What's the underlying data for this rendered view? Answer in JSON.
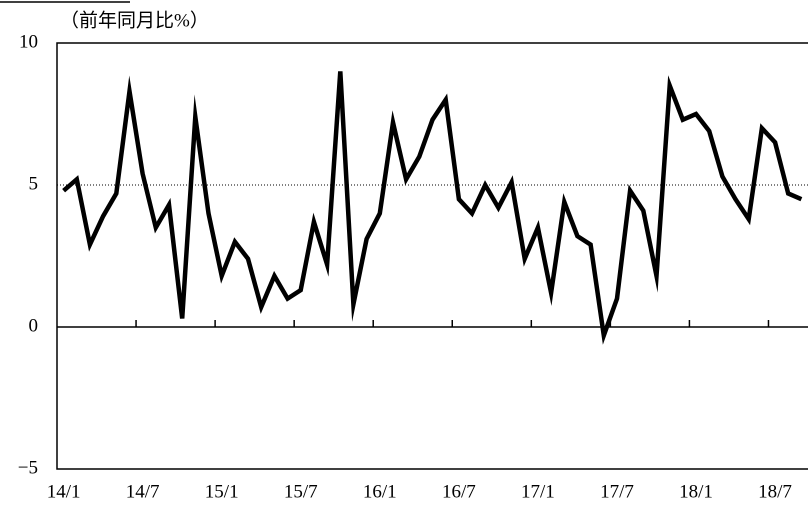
{
  "chart_data": {
    "type": "line",
    "title": "（前年同月比%）",
    "categories": [
      "14/1",
      null,
      null,
      null,
      null,
      null,
      "14/7",
      null,
      null,
      null,
      null,
      null,
      "15/1",
      null,
      null,
      null,
      null,
      null,
      "15/7",
      null,
      null,
      null,
      null,
      null,
      "16/1",
      null,
      null,
      null,
      null,
      null,
      "16/7",
      null,
      null,
      null,
      null,
      null,
      "17/1",
      null,
      null,
      null,
      null,
      null,
      "17/7",
      null,
      null,
      null,
      null,
      null,
      "18/1",
      null,
      null,
      null,
      null,
      null,
      "18/7",
      null,
      null
    ],
    "values": [
      4.8,
      5.2,
      2.9,
      3.9,
      4.7,
      8.3,
      5.4,
      3.5,
      4.3,
      0.3,
      7.4,
      4.0,
      1.8,
      3.0,
      2.4,
      0.7,
      1.8,
      1.0,
      1.3,
      3.7,
      2.2,
      9.0,
      0.8,
      3.1,
      4.0,
      7.2,
      5.2,
      6.0,
      7.3,
      8.0,
      4.5,
      4.0,
      5.0,
      4.2,
      5.1,
      2.4,
      3.5,
      1.2,
      4.4,
      3.2,
      2.9,
      -0.3,
      1.0,
      4.8,
      4.1,
      1.8,
      8.5,
      7.3,
      7.5,
      6.9,
      5.3,
      4.5,
      3.8,
      7.0,
      6.5,
      4.7,
      4.5
    ],
    "color": "#000000",
    "ylim": [
      -5,
      10
    ],
    "yticks": [
      {
        "value": -5,
        "label": "−5"
      },
      0,
      5,
      10
    ],
    "reference_line": 5
  }
}
